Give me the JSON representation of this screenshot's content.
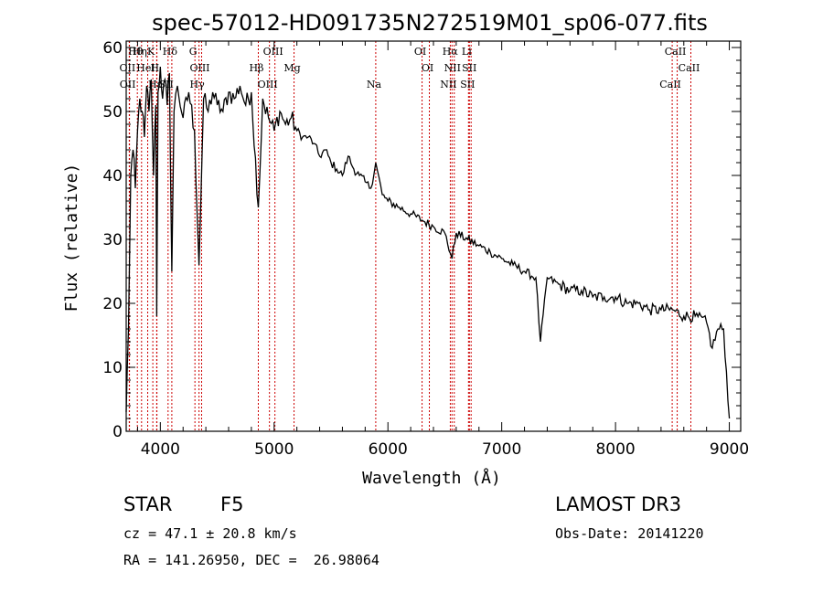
{
  "chart_data": {
    "type": "line",
    "title": "spec-57012-HD091735N272519M01_sp06-077.fits",
    "xlabel": "Wavelength (Å)",
    "ylabel": "Flux (relative)",
    "xlim": [
      3700,
      9100
    ],
    "ylim": [
      0,
      61
    ],
    "xticks": [
      4000,
      5000,
      6000,
      7000,
      8000,
      9000
    ],
    "yticks": [
      0,
      10,
      20,
      30,
      40,
      50,
      60
    ],
    "series": [
      {
        "name": "flux",
        "x": [
          3700,
          3720,
          3740,
          3760,
          3780,
          3800,
          3820,
          3840,
          3860,
          3880,
          3900,
          3920,
          3940,
          3960,
          3968,
          3980,
          4000,
          4020,
          4040,
          4060,
          4080,
          4101,
          4120,
          4150,
          4200,
          4250,
          4300,
          4340,
          4380,
          4420,
          4460,
          4500,
          4550,
          4600,
          4650,
          4700,
          4750,
          4800,
          4861,
          4900,
          4950,
          5000,
          5050,
          5100,
          5150,
          5200,
          5250,
          5300,
          5350,
          5400,
          5450,
          5500,
          5550,
          5600,
          5650,
          5700,
          5750,
          5800,
          5850,
          5893,
          5950,
          6000,
          6100,
          6200,
          6300,
          6400,
          6500,
          6563,
          6600,
          6700,
          6800,
          6900,
          7000,
          7100,
          7200,
          7300,
          7340,
          7400,
          7500,
          7600,
          7700,
          7800,
          7900,
          8000,
          8100,
          8200,
          8300,
          8400,
          8500,
          8600,
          8700,
          8800,
          8850,
          8900,
          8950,
          9000
        ],
        "y": [
          3,
          16,
          40,
          44,
          38,
          47,
          52,
          50,
          46,
          54,
          50,
          55,
          40,
          51,
          18,
          53,
          57,
          52,
          55,
          51,
          56,
          25,
          50,
          54,
          49,
          53,
          47,
          26,
          52,
          50,
          53,
          51,
          50,
          53,
          52,
          54,
          51,
          53,
          35,
          52,
          49,
          47,
          50,
          48,
          49,
          47,
          46,
          46,
          45,
          43,
          44,
          42,
          41,
          40,
          43,
          41,
          40,
          39,
          38,
          42,
          37,
          36,
          35,
          34,
          33,
          32,
          31,
          27,
          31,
          30,
          29,
          28,
          27,
          26,
          25,
          24,
          14,
          24,
          23,
          22,
          22,
          21,
          21,
          21,
          20,
          20,
          19,
          19,
          19,
          18,
          18,
          17,
          13,
          16,
          16,
          2
        ]
      }
    ],
    "lines": [
      {
        "label": "Hθ",
        "w": 3798
      },
      {
        "label": "OII",
        "w": 3727
      },
      {
        "label": "OII",
        "w": 3729
      },
      {
        "label": "Hη",
        "w": 3835
      },
      {
        "label": "HeI",
        "w": 3889
      },
      {
        "label": "Hε",
        "w": 3970
      },
      {
        "label": "K",
        "w": 3934
      },
      {
        "label": "H",
        "w": 3968
      },
      {
        "label": "SII",
        "w": 4068
      },
      {
        "label": "Hδ",
        "w": 4101
      },
      {
        "label": "OIII",
        "w": 4363
      },
      {
        "label": "Hγ",
        "w": 4340
      },
      {
        "label": "G",
        "w": 4304
      },
      {
        "label": "Hβ",
        "w": 4861
      },
      {
        "label": "OIII",
        "w": 4959
      },
      {
        "label": "OIII",
        "w": 5007
      },
      {
        "label": "Mg",
        "w": 5175
      },
      {
        "label": "Na",
        "w": 5893
      },
      {
        "label": "OI",
        "w": 6300
      },
      {
        "label": "OI",
        "w": 6364
      },
      {
        "label": "NII",
        "w": 6548
      },
      {
        "label": "Hα",
        "w": 6563
      },
      {
        "label": "NII",
        "w": 6583
      },
      {
        "label": "SII",
        "w": 6716
      },
      {
        "label": "Li",
        "w": 6708
      },
      {
        "label": "SII",
        "w": 6731
      },
      {
        "label": "CaII",
        "w": 8498
      },
      {
        "label": "CaII",
        "w": 8542
      },
      {
        "label": "CaII",
        "w": 8662
      }
    ]
  },
  "info": {
    "star": "STAR",
    "subclass": "F5",
    "survey": "LAMOST DR3",
    "cz": "cz = 47.1 ± 20.8 km/s",
    "obs_date": "Obs-Date: 20141220",
    "radec": "RA = 141.26950, DEC =  26.98064"
  },
  "colors": {
    "line": "#000000",
    "marker": "#cc0000"
  }
}
